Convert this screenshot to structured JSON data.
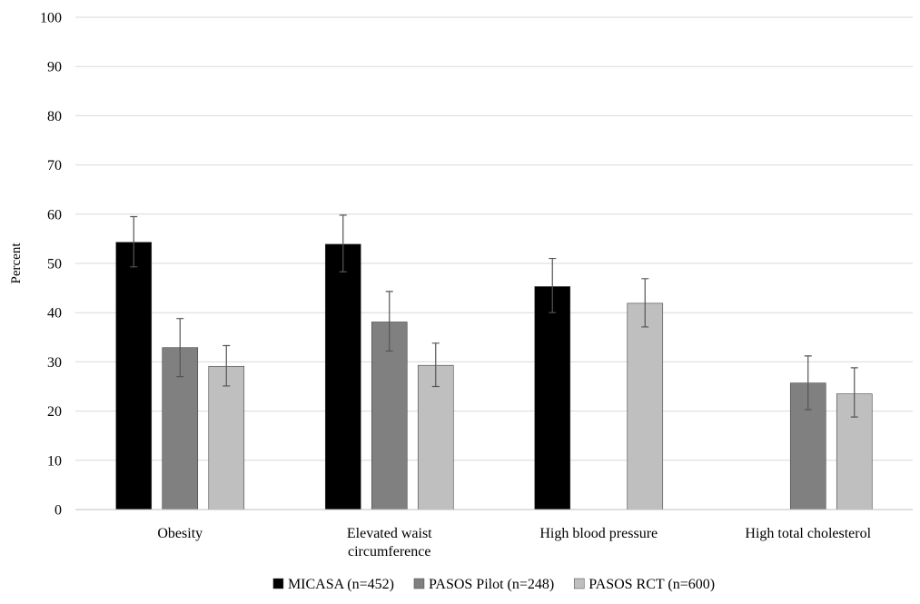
{
  "chart_data": {
    "type": "bar",
    "title": "",
    "xlabel": "",
    "ylabel": "Percent",
    "ylim": [
      0,
      100
    ],
    "yticks": [
      0,
      10,
      20,
      30,
      40,
      50,
      60,
      70,
      80,
      90,
      100
    ],
    "categories": [
      [
        "Obesity"
      ],
      [
        "Elevated waist",
        "circumference"
      ],
      [
        "High blood pressure"
      ],
      [
        "High total cholesterol"
      ]
    ],
    "series": [
      {
        "name": "MICASA (n=452)",
        "color": "#000000",
        "values": [
          54.3,
          53.9,
          45.3,
          null
        ],
        "err_low": [
          49.3,
          48.3,
          40.0,
          null
        ],
        "err_high": [
          59.5,
          59.8,
          51.0,
          null
        ]
      },
      {
        "name": "PASOS Pilot (n=248)",
        "color": "#808080",
        "values": [
          32.9,
          38.1,
          null,
          25.7
        ],
        "err_low": [
          27.0,
          32.2,
          null,
          20.3
        ],
        "err_high": [
          38.8,
          44.3,
          null,
          31.2
        ]
      },
      {
        "name": "PASOS RCT (n=600)",
        "color": "#bfbfbf",
        "values": [
          29.1,
          29.3,
          41.9,
          23.5
        ],
        "err_low": [
          25.1,
          25.0,
          37.1,
          18.8
        ],
        "err_high": [
          33.3,
          33.8,
          46.9,
          28.8
        ]
      }
    ],
    "legend": "bottom",
    "grid": true
  }
}
